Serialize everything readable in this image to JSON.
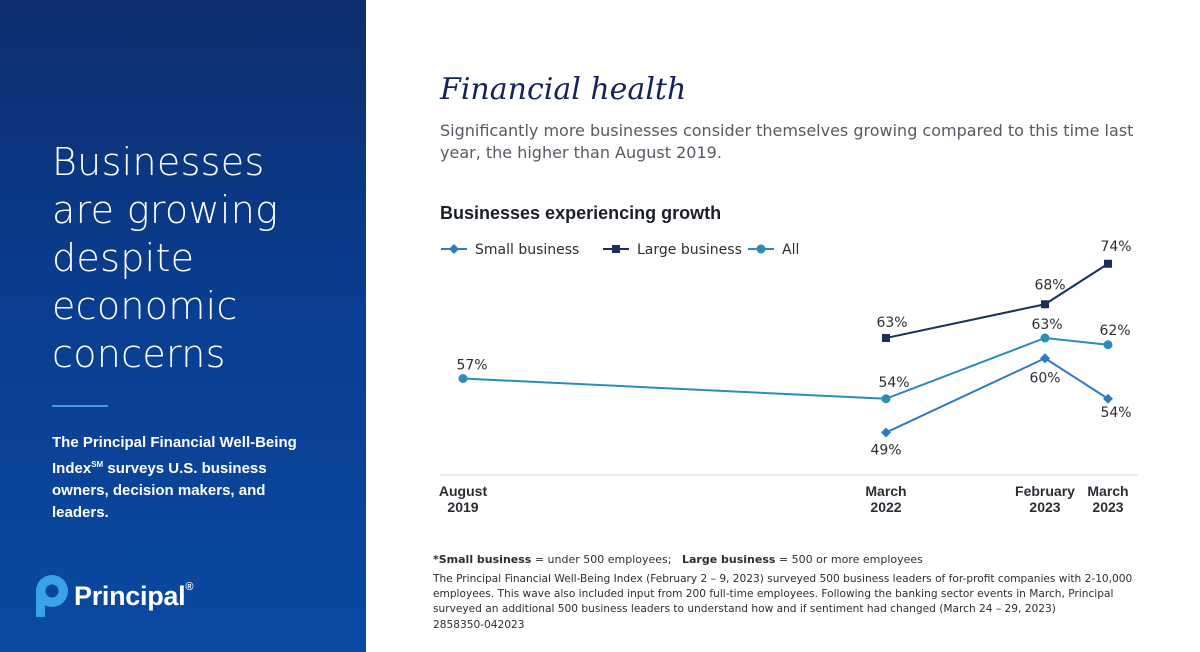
{
  "sidebar": {
    "headline_lines": [
      "Businesses",
      "are growing",
      "despite",
      "economic",
      "concerns"
    ],
    "blurb_part1": "The Principal Financial Well-Being Index",
    "blurb_sm": "SM",
    "blurb_part2": " surveys U.S. business owners, decision makers, and leaders.",
    "logo_text": "Principal",
    "logo_reg": "®",
    "logo_icon": "principal-p-icon"
  },
  "main": {
    "title": "Financial health",
    "subtitle": "Significantly more businesses consider themselves growing compared to this time last year, the higher than August 2019."
  },
  "chart_data": {
    "type": "line",
    "title": "Businesses experiencing growth",
    "x": [
      "August 2019",
      "March 2022",
      "February 2023",
      "March 2023"
    ],
    "x_tick_labels": [
      [
        "August",
        "2019"
      ],
      [
        "March",
        "2022"
      ],
      [
        "February",
        "2023"
      ],
      [
        "March",
        "2023"
      ]
    ],
    "ylim": [
      40,
      80
    ],
    "grid": false,
    "legend": "top-left",
    "series": [
      {
        "name": "Small business",
        "marker": "diamond",
        "color": "#2e7bc4",
        "values": [
          null,
          49,
          60,
          54
        ]
      },
      {
        "name": "Large business",
        "marker": "square",
        "color": "#1b2f5e",
        "values": [
          null,
          63,
          68,
          74
        ]
      },
      {
        "name": "All",
        "marker": "circle",
        "color": "#2a8cb8",
        "values": [
          57,
          54,
          63,
          62
        ]
      }
    ],
    "data_labels": {
      "Small business": [
        "",
        "49%",
        "60%",
        "54%"
      ],
      "Large business": [
        "",
        "63%",
        "68%",
        "74%"
      ],
      "All": [
        "57%",
        "54%",
        "63%",
        "62%"
      ]
    }
  },
  "footnotes": {
    "small_label": "*Small business",
    "small_def": " = under 500 employees;",
    "large_label": "Large business",
    "large_def": " = 500 or more employees",
    "survey": "The Principal Financial Well-Being Index (February 2 – 9, 2023) surveyed 500 business leaders of for-profit companies with 2-10,000 employees. This wave also included input from 200 full-time employees. Following the banking sector events in March, Principal surveyed an additional 500 business leaders to understand how and if sentiment had changed (March 24 – 29, 2023)",
    "code": "2858350-042023"
  }
}
